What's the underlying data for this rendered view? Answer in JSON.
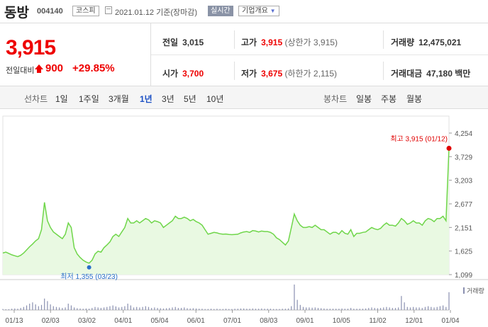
{
  "stock": {
    "name": "동방",
    "code": "004140",
    "market": "코스피",
    "date": "2021.01.12 기준(장마감)",
    "live_label": "실시간",
    "corp_label": "기업개요"
  },
  "quote": {
    "price": "3,915",
    "change_label": "전일대비",
    "change": "900",
    "change_rate": "+29.85%",
    "prev_close_label": "전일",
    "prev_close": "3,015",
    "high_label": "고가",
    "high": "3,915",
    "upper_limit": "(상한가 3,915)",
    "volume_label": "거래량",
    "volume": "12,475,021",
    "open_label": "시가",
    "open": "3,700",
    "low_label": "저가",
    "low": "3,675",
    "lower_limit": "(하한가 2,115)",
    "amount_label": "거래대금",
    "amount": "47,180",
    "amount_unit": "백만"
  },
  "periods": {
    "line_label": "선차트",
    "line_options": [
      "1일",
      "1주일",
      "3개월",
      "1년",
      "3년",
      "5년",
      "10년"
    ],
    "active": "1년",
    "candle_label": "봉차트",
    "candle_options": [
      "일봉",
      "주봉",
      "월봉"
    ]
  },
  "colors": {
    "up": "#e00000",
    "line": "#6fd64a",
    "fill": "#e9f9e2",
    "low_marker": "#2a6fc9",
    "volume_bar": "#8a90b0"
  },
  "chart_data": {
    "type": "area",
    "title": "",
    "ylabel": "",
    "ylim": [
      1099,
      4254
    ],
    "y_ticks": [
      "4,254",
      "3,729",
      "3,203",
      "2,677",
      "2,151",
      "1,625",
      "1,099"
    ],
    "x_ticks": [
      "01/13",
      "02/03",
      "03/02",
      "04/01",
      "05/04",
      "06/01",
      "07/01",
      "08/03",
      "09/01",
      "10/05",
      "11/02",
      "12/01",
      "01/04"
    ],
    "high_annotation": "최고 3,915 (01/12)",
    "low_annotation": "최저 1,355 (03/23)",
    "volume_legend": "거래량",
    "series": [
      {
        "values": [
          1580,
          1600,
          1570,
          1540,
          1520,
          1500,
          1530,
          1580,
          1650,
          1720,
          1780,
          1850,
          1900,
          2100,
          2710,
          2300,
          2150,
          2050,
          2000,
          1950,
          1900,
          2000,
          2250,
          2150,
          1700,
          1560,
          1480,
          1420,
          1380,
          1355,
          1420,
          1560,
          1620,
          1600,
          1700,
          1760,
          1830,
          1950,
          2000,
          1950,
          2050,
          2150,
          2350,
          2250,
          2250,
          2300,
          2250,
          2300,
          2350,
          2320,
          2250,
          2300,
          2280,
          2250,
          2150,
          2200,
          2250,
          2300,
          2400,
          2350,
          2350,
          2380,
          2350,
          2300,
          2330,
          2280,
          2250,
          2200,
          2100,
          2000,
          2020,
          2040,
          2030,
          2010,
          2000,
          2005,
          1995,
          1990,
          1995,
          2000,
          2030,
          2050,
          2060,
          2040,
          2080,
          2070,
          2050,
          2070,
          2060,
          2060,
          2040,
          2000,
          1920,
          1880,
          1820,
          1760,
          1850,
          2150,
          2450,
          2300,
          2200,
          2150,
          2150,
          2170,
          2150,
          2200,
          2150,
          2100,
          2100,
          2050,
          2000,
          2040,
          2040,
          2000,
          2080,
          2020,
          2000,
          2100,
          1950,
          2020,
          2020,
          2040,
          2050,
          2100,
          2150,
          2120,
          2100,
          2130,
          2200,
          2250,
          2200,
          2200,
          2180,
          2250,
          2350,
          2300,
          2220,
          2250,
          2300,
          2250,
          2250,
          2200,
          2300,
          2350,
          2330,
          2280,
          2350,
          2350,
          2400,
          2300,
          3915
        ]
      }
    ],
    "volume": [
      0.04,
      0.03,
      0.03,
      0.05,
      0.06,
      0.05,
      0.08,
      0.12,
      0.18,
      0.25,
      0.3,
      0.22,
      0.15,
      0.2,
      0.45,
      0.35,
      0.22,
      0.15,
      0.12,
      0.1,
      0.08,
      0.1,
      0.25,
      0.18,
      0.1,
      0.07,
      0.06,
      0.05,
      0.06,
      0.05,
      0.08,
      0.12,
      0.1,
      0.08,
      0.1,
      0.12,
      0.15,
      0.18,
      0.14,
      0.1,
      0.12,
      0.15,
      0.25,
      0.18,
      0.1,
      0.12,
      0.1,
      0.12,
      0.15,
      0.12,
      0.08,
      0.1,
      0.08,
      0.07,
      0.06,
      0.07,
      0.08,
      0.1,
      0.12,
      0.08,
      0.08,
      0.1,
      0.07,
      0.06,
      0.07,
      0.06,
      0.05,
      0.05,
      0.04,
      0.04,
      0.05,
      0.04,
      0.05,
      0.04,
      0.04,
      0.05,
      0.04,
      0.04,
      0.05,
      0.05,
      0.06,
      0.06,
      0.05,
      0.05,
      0.06,
      0.05,
      0.05,
      0.06,
      0.05,
      0.05,
      0.05,
      0.04,
      0.04,
      0.04,
      0.05,
      0.05,
      0.06,
      0.15,
      1.0,
      0.4,
      0.2,
      0.12,
      0.1,
      0.1,
      0.09,
      0.1,
      0.08,
      0.07,
      0.06,
      0.05,
      0.05,
      0.05,
      0.05,
      0.05,
      0.06,
      0.05,
      0.05,
      0.08,
      0.05,
      0.05,
      0.05,
      0.05,
      0.06,
      0.08,
      0.1,
      0.08,
      0.07,
      0.08,
      0.1,
      0.12,
      0.1,
      0.08,
      0.08,
      0.1,
      0.55,
      0.3,
      0.12,
      0.1,
      0.12,
      0.1,
      0.1,
      0.08,
      0.12,
      0.15,
      0.12,
      0.1,
      0.12,
      0.15,
      0.18,
      0.12,
      0.7
    ]
  }
}
